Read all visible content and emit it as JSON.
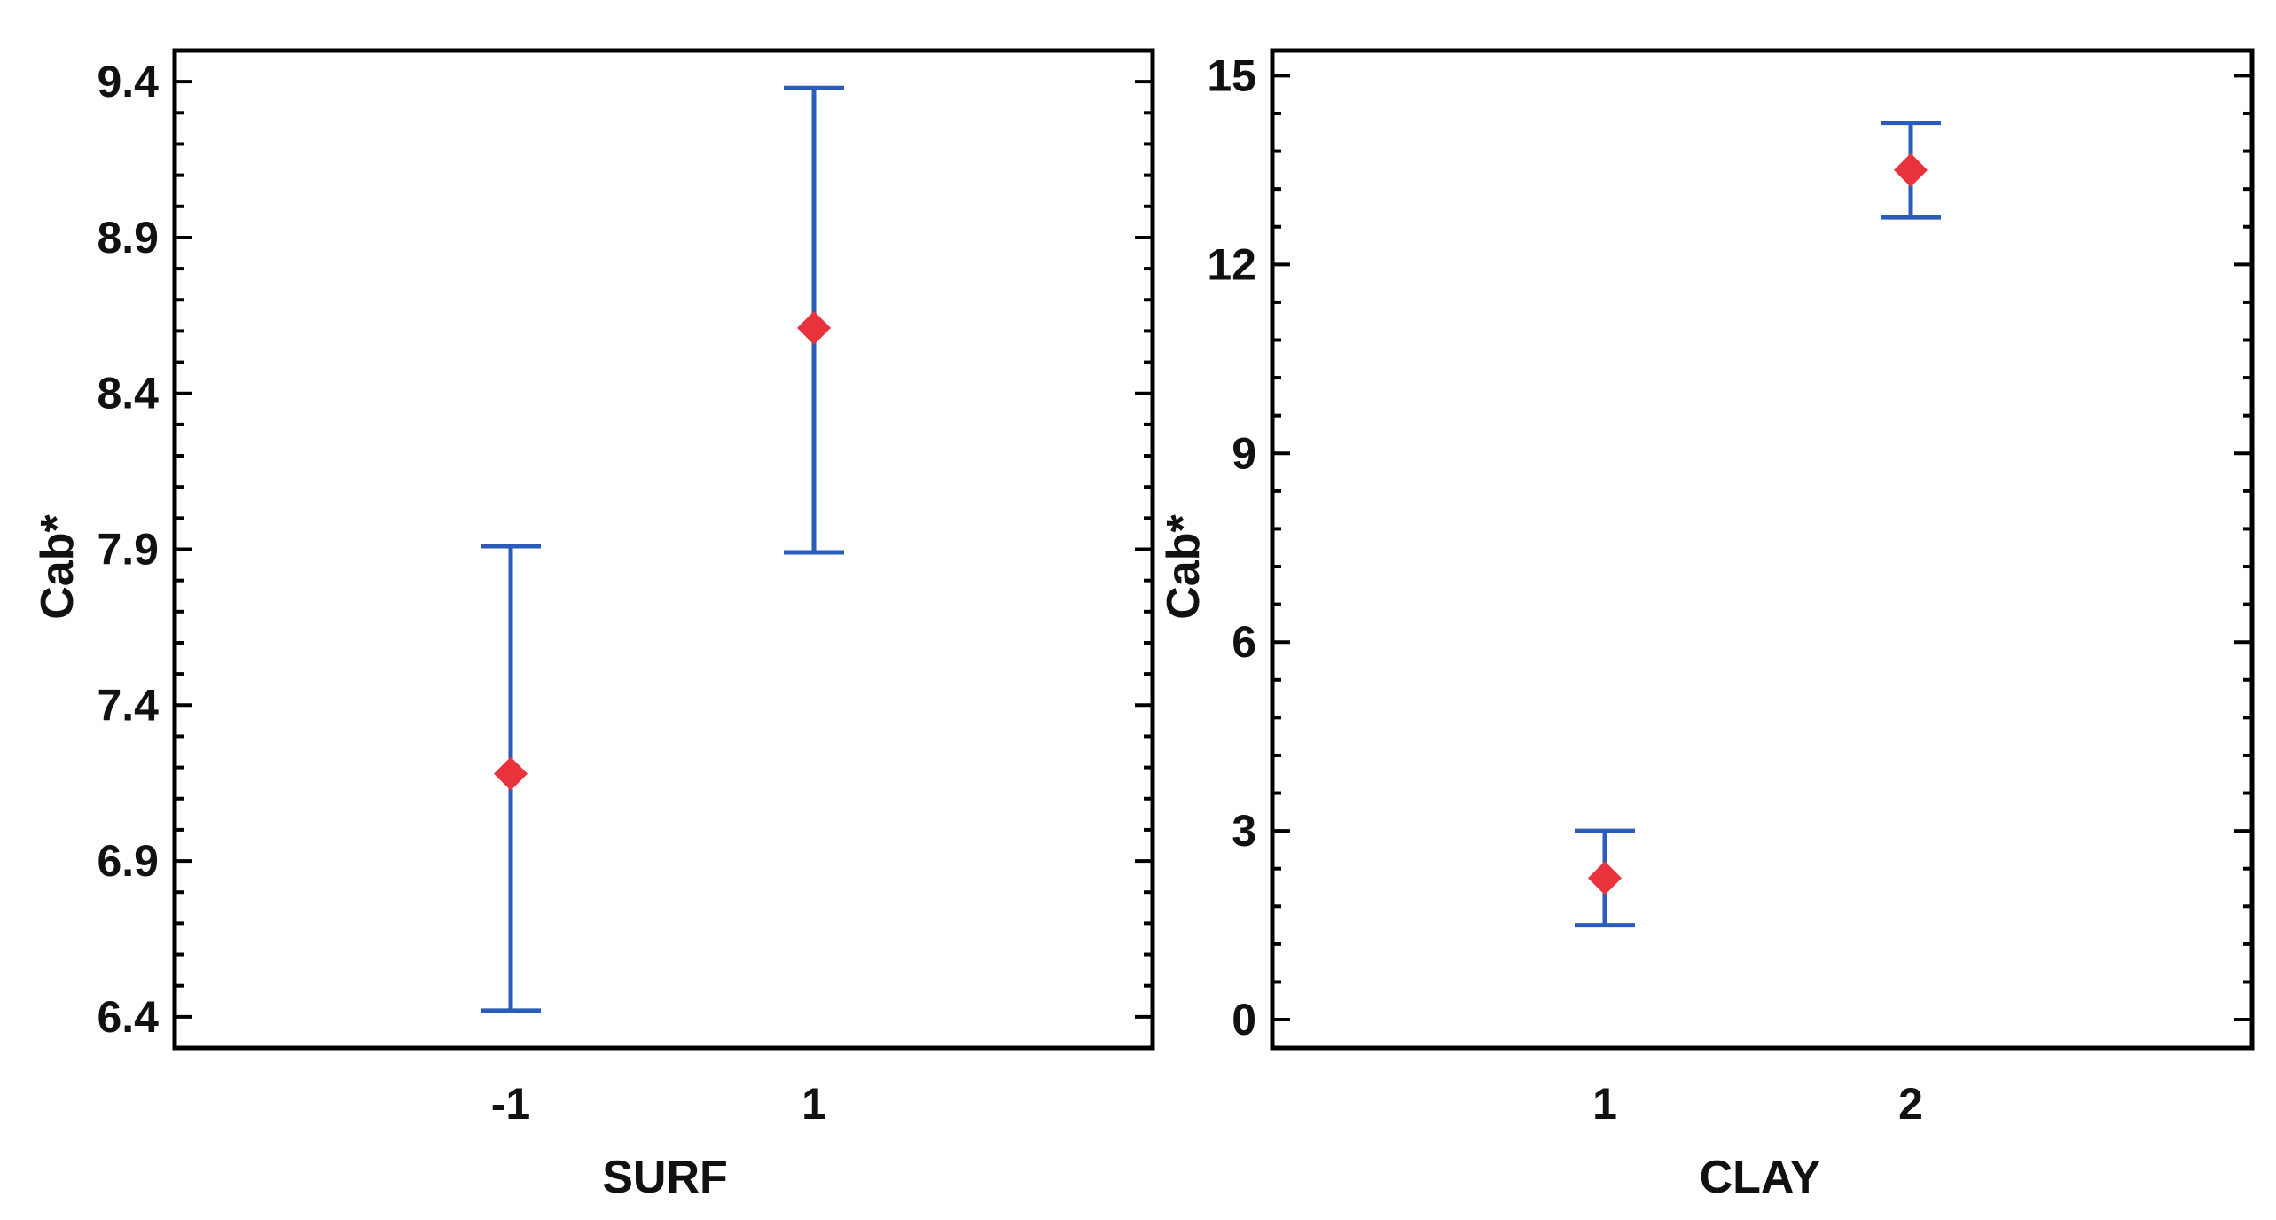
{
  "chart_data": [
    {
      "type": "scatter",
      "title": "",
      "xlabel": "SURF",
      "ylabel": "Cab*",
      "categories": [
        "-1",
        "1"
      ],
      "x_ticks": [
        "-1",
        "1"
      ],
      "y_ticks": [
        "6.4",
        "6.9",
        "7.4",
        "7.9",
        "8.4",
        "8.9",
        "9.4"
      ],
      "ylim": [
        6.3,
        9.5
      ],
      "grid": false,
      "series": [
        {
          "values": [
            7.18,
            8.61
          ],
          "lower": [
            6.42,
            7.89
          ],
          "upper": [
            7.91,
            9.38
          ]
        }
      ],
      "colors": {
        "marker": "#e8323c",
        "errorbar": "#2a5cb8",
        "frame": "#000000"
      }
    },
    {
      "type": "scatter",
      "title": "",
      "xlabel": "CLAY",
      "ylabel": "Cab*",
      "categories": [
        "1",
        "2"
      ],
      "x_ticks": [
        "1",
        "2"
      ],
      "y_ticks": [
        "0",
        "3",
        "6",
        "9",
        "12",
        "15"
      ],
      "ylim": [
        -0.45,
        15.4
      ],
      "grid": false,
      "series": [
        {
          "values": [
            2.25,
            13.5
          ],
          "lower": [
            1.5,
            12.75
          ],
          "upper": [
            3.0,
            14.25
          ]
        }
      ],
      "colors": {
        "marker": "#e8323c",
        "errorbar": "#2a5cb8",
        "frame": "#000000"
      }
    }
  ]
}
